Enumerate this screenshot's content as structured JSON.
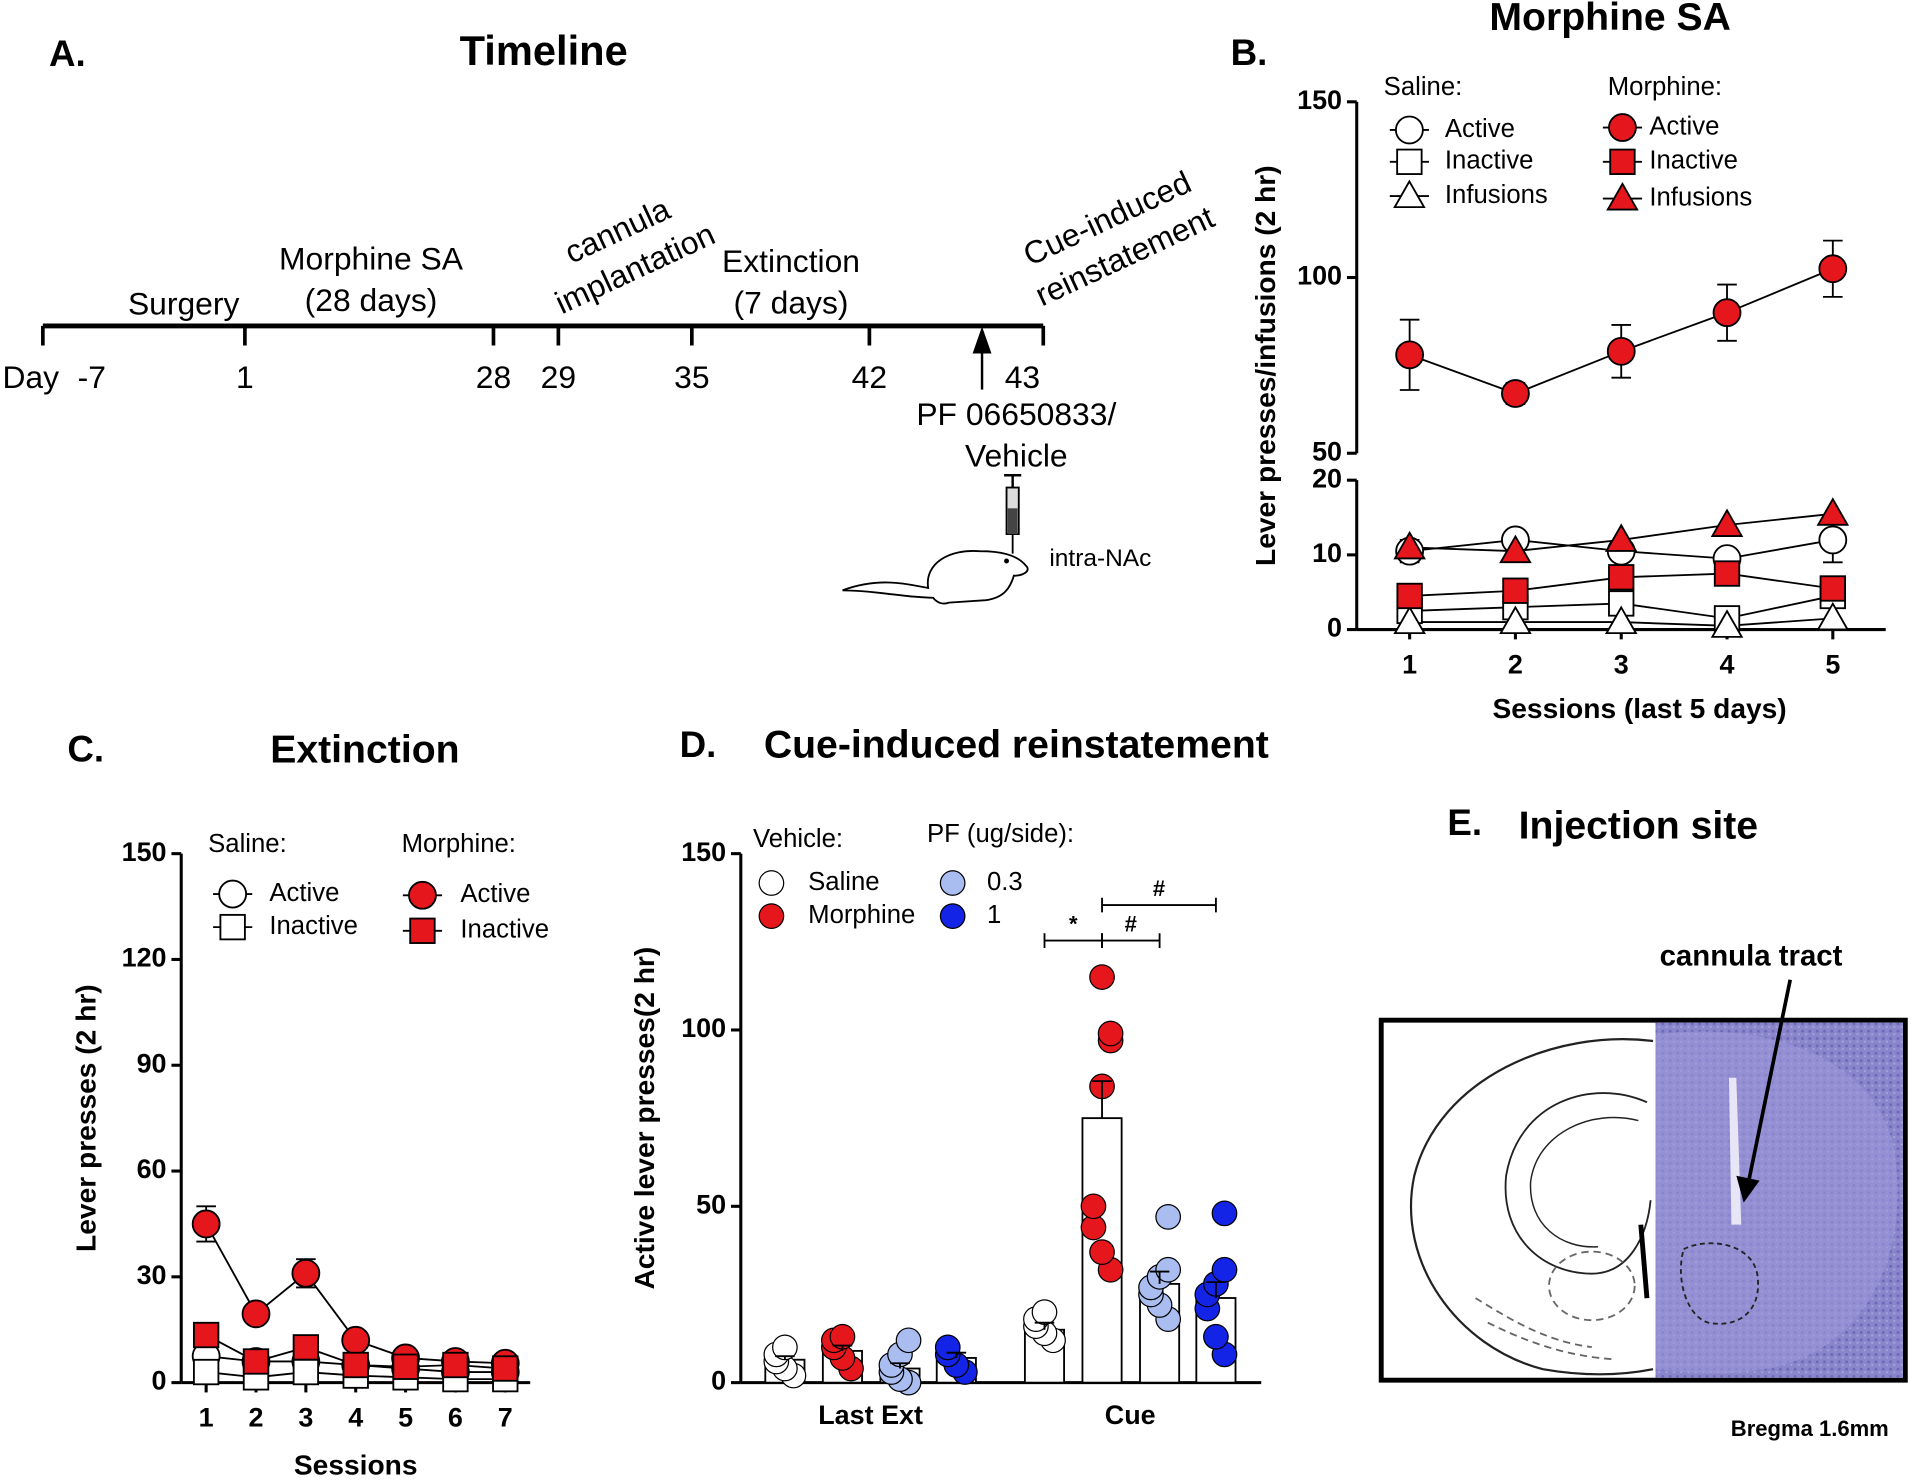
{
  "timeline": {
    "panel": "A.",
    "title": "Timeline",
    "day_label": "Day",
    "days": [
      "-7",
      "1",
      "28",
      "29",
      "35",
      "42",
      "43"
    ],
    "phases": [
      [
        "Surgery"
      ],
      [
        "Morphine SA",
        "(28 days)"
      ],
      [
        "cannula",
        "implantation"
      ],
      [
        "Extinction",
        "(7 days)"
      ],
      [
        "Cue-induced",
        "reinstatement"
      ]
    ],
    "treatment": [
      "PF 06650833/",
      "Vehicle"
    ],
    "route": "intra-NAc"
  },
  "chart_data": [
    {
      "type": "line",
      "panel": "B.",
      "title": "Morphine SA",
      "xlabel": "Sessions (last 5 days)",
      "ylabel": "Lever presses/infusions (2 hr)",
      "x": [
        1,
        2,
        3,
        4,
        5
      ],
      "xlim": [
        0.5,
        5.5
      ],
      "xticks": [
        1,
        2,
        3,
        4,
        5
      ],
      "y_segments": [
        {
          "ylim": [
            0,
            20
          ],
          "yticks": [
            0,
            10,
            20
          ]
        },
        {
          "ylim": [
            50,
            150
          ],
          "yticks": [
            50,
            100,
            150
          ]
        }
      ],
      "legend_titles": [
        "Saline:",
        "Morphine:"
      ],
      "series": [
        {
          "name": "Active",
          "marker": "circle",
          "color": "#ffffff",
          "segment": 0,
          "values": [
            10.5,
            12,
            10.5,
            9.5,
            12
          ],
          "errors": [
            1.5,
            0.5,
            1,
            1,
            3
          ]
        },
        {
          "name": "Inactive",
          "marker": "square",
          "color": "#ffffff",
          "segment": 0,
          "values": [
            2.5,
            3,
            3.5,
            1.5,
            4.5
          ]
        },
        {
          "name": "Infusions",
          "marker": "triangle",
          "color": "#ffffff",
          "segment": 0,
          "values": [
            1,
            1,
            1,
            0.5,
            1.5
          ]
        },
        {
          "name": "Active",
          "marker": "circle",
          "color": "#e5171d",
          "segment": 1,
          "values": [
            78,
            67,
            79,
            90,
            102.5
          ],
          "errors": [
            10,
            3,
            7.5,
            8,
            8
          ]
        },
        {
          "name": "Inactive",
          "marker": "square",
          "color": "#e5171d",
          "segment": 0,
          "values": [
            4.5,
            5.2,
            7,
            7.5,
            5.5
          ]
        },
        {
          "name": "Infusions",
          "marker": "triangle",
          "color": "#e5171d",
          "segment": 0,
          "values": [
            11,
            10.5,
            12,
            14,
            15.5
          ]
        }
      ]
    },
    {
      "type": "line",
      "panel": "C.",
      "title": "Extinction",
      "xlabel": "Sessions",
      "ylabel": "Lever presses (2 hr)",
      "x": [
        1,
        2,
        3,
        4,
        5,
        6,
        7
      ],
      "xlim": [
        0.5,
        7.5
      ],
      "xticks": [
        1,
        2,
        3,
        4,
        5,
        6,
        7
      ],
      "ylim": [
        0,
        150
      ],
      "yticks": [
        0,
        30,
        60,
        90,
        120,
        150
      ],
      "legend_titles": [
        "Saline:",
        "Morphine:"
      ],
      "series": [
        {
          "name": "Active",
          "marker": "circle",
          "color": "#ffffff",
          "values": [
            7.5,
            6,
            6,
            5,
            4,
            3,
            3
          ]
        },
        {
          "name": "Inactive",
          "marker": "square",
          "color": "#ffffff",
          "values": [
            3,
            1.5,
            3,
            2,
            1.5,
            1,
            1
          ]
        },
        {
          "name": "Active",
          "marker": "circle",
          "color": "#e5171d",
          "values": [
            45,
            19.5,
            31,
            12,
            7,
            6,
            5.5
          ],
          "errors": [
            5,
            1,
            4,
            1,
            1,
            1,
            1
          ]
        },
        {
          "name": "Inactive",
          "marker": "square",
          "color": "#e5171d",
          "values": [
            13.5,
            6,
            10,
            5,
            4.5,
            5,
            4
          ]
        }
      ]
    },
    {
      "type": "bar",
      "panel": "D.",
      "title": "Cue-induced reinstatement",
      "ylabel": "Active lever presses(2 hr)",
      "categories": [
        "Last Ext",
        "Cue"
      ],
      "ylim": [
        0,
        150
      ],
      "yticks": [
        0,
        50,
        100,
        150
      ],
      "legend_titles": [
        "Vehicle:",
        "PF (ug/side):"
      ],
      "series": [
        {
          "name": "Saline",
          "color": "#ffffff",
          "values": [
            6.5,
            15
          ],
          "errors": [
            1,
            2
          ],
          "points": [
            [
              2,
              4,
              6,
              8,
              10
            ],
            [
              12,
              14,
              16,
              18,
              20
            ]
          ]
        },
        {
          "name": "Morphine",
          "color": "#e5171d",
          "values": [
            9,
            75
          ],
          "errors": [
            1.5,
            10.5
          ],
          "points": [
            [
              4,
              7,
              10,
              12,
              13
            ],
            [
              32,
              37,
              44,
              50,
              84,
              97,
              99,
              115
            ]
          ]
        },
        {
          "name": "0.3",
          "color": "#a9bdf0",
          "values": [
            4,
            28
          ],
          "errors": [
            1.5,
            3.5
          ],
          "points": [
            [
              0,
              1,
              3,
              5,
              8,
              12
            ],
            [
              18,
              22,
              25,
              27,
              30,
              32,
              47
            ]
          ]
        },
        {
          "name": "1",
          "color": "#1424e6",
          "values": [
            7,
            24
          ],
          "errors": [
            1.5,
            4.5
          ],
          "points": [
            [
              3,
              5,
              8,
              10
            ],
            [
              8,
              13,
              21,
              25,
              28,
              32,
              48
            ]
          ]
        }
      ],
      "annotations": [
        {
          "text": "*",
          "category": 1,
          "from": 0,
          "to": 1
        },
        {
          "text": "#",
          "category": 1,
          "from": 1,
          "to": 2
        },
        {
          "text": "#",
          "category": 1,
          "from": 1,
          "to": 3
        }
      ]
    }
  ],
  "injection_site": {
    "panel": "E.",
    "title": "Injection site",
    "arrow_label": "cannula tract",
    "caption": "Bregma 1.6mm"
  }
}
